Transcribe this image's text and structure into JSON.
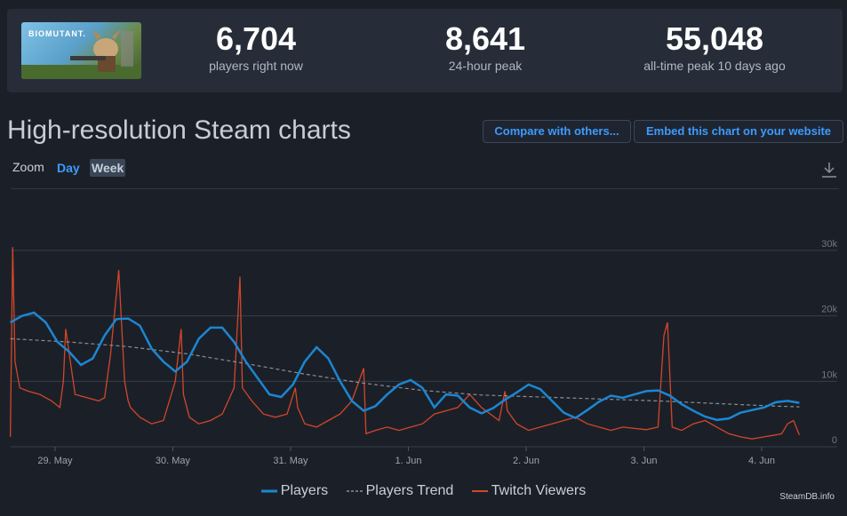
{
  "game": {
    "logo_text": "BIOMUTANT."
  },
  "stats": [
    {
      "value": "6,704",
      "label": "players right now"
    },
    {
      "value": "8,641",
      "label": "24-hour peak"
    },
    {
      "value": "55,048",
      "label": "all-time peak 10 days ago"
    }
  ],
  "page_title": "High-resolution Steam charts",
  "buttons": {
    "compare": "Compare with others...",
    "embed": "Embed this chart on your website"
  },
  "zoom": {
    "label": "Zoom",
    "options": [
      "Day",
      "Week"
    ],
    "selected": "Week"
  },
  "colors": {
    "players": "#1c86d2",
    "trend": "#8a8f96",
    "twitch": "#d2462a",
    "link": "#3c9bff"
  },
  "icons": {
    "download": "download-icon"
  },
  "credit": "SteamDB.info",
  "chart_data": {
    "type": "line",
    "x_ticks": [
      "29. May",
      "30. May",
      "31. May",
      "1. Jun",
      "2. Jun",
      "3. Jun",
      "4. Jun"
    ],
    "y_ticks": [
      "0",
      "10k",
      "20k",
      "30k"
    ],
    "ylim": [
      0,
      30000
    ],
    "grid": true,
    "legend_position": "bottom",
    "series": [
      {
        "name": "Players",
        "x": [
          0,
          0.1,
          0.2,
          0.3,
          0.4,
          0.5,
          0.6,
          0.7,
          0.8,
          0.9,
          1.0,
          1.1,
          1.2,
          1.3,
          1.4,
          1.5,
          1.6,
          1.7,
          1.8,
          1.9,
          2.0,
          2.1,
          2.2,
          2.3,
          2.4,
          2.5,
          2.6,
          2.7,
          2.8,
          2.9,
          3.0,
          3.1,
          3.2,
          3.3,
          3.4,
          3.5,
          3.6,
          3.7,
          3.8,
          3.9,
          4.0,
          4.1,
          4.2,
          4.3,
          4.4,
          4.5,
          4.6,
          4.7,
          4.8,
          4.9,
          5.0,
          5.1,
          5.2,
          5.3,
          5.4,
          5.5,
          5.6,
          5.7,
          5.8,
          5.9,
          6.0,
          6.1,
          6.2,
          6.3,
          6.4,
          6.5,
          6.6,
          6.7
        ],
        "values": [
          19000,
          20000,
          20500,
          19000,
          16000,
          14500,
          12500,
          13500,
          17000,
          19500,
          19600,
          18500,
          15000,
          13000,
          11500,
          13000,
          16500,
          18200,
          18200,
          16000,
          13000,
          10500,
          8000,
          7600,
          9500,
          13000,
          15200,
          13500,
          10000,
          7000,
          5500,
          6200,
          8000,
          9500,
          10200,
          9000,
          6000,
          8000,
          7800,
          6000,
          5100,
          5900,
          7200,
          8300,
          9500,
          8800,
          7000,
          5200,
          4400,
          5600,
          6900,
          7800,
          7500,
          8000,
          8500,
          8600,
          7800,
          6500,
          5500,
          4600,
          4100,
          4300,
          5200,
          5600,
          6000,
          6800,
          7000,
          6700
        ]
      },
      {
        "name": "Players Trend",
        "x": [
          0,
          0.5,
          1.0,
          1.5,
          2.0,
          2.5,
          3.0,
          3.5,
          4.0,
          4.5,
          5.0,
          5.5,
          6.0,
          6.5,
          6.7
        ],
        "values": [
          16500,
          16000,
          15300,
          14200,
          12700,
          11100,
          9700,
          8600,
          7900,
          7600,
          7300,
          7000,
          6600,
          6200,
          6100
        ]
      },
      {
        "name": "Twitch Viewers",
        "x": [
          0,
          0.02,
          0.04,
          0.08,
          0.15,
          0.25,
          0.35,
          0.42,
          0.45,
          0.47,
          0.55,
          0.65,
          0.75,
          0.8,
          0.85,
          0.92,
          0.97,
          1.0,
          1.02,
          1.1,
          1.2,
          1.3,
          1.4,
          1.45,
          1.47,
          1.52,
          1.6,
          1.7,
          1.8,
          1.9,
          1.95,
          1.97,
          2.05,
          2.15,
          2.25,
          2.35,
          2.42,
          2.44,
          2.5,
          2.6,
          2.7,
          2.8,
          2.9,
          3.0,
          3.02,
          3.1,
          3.2,
          3.3,
          3.4,
          3.5,
          3.6,
          3.7,
          3.8,
          3.9,
          4.0,
          4.15,
          4.2,
          4.22,
          4.3,
          4.4,
          4.5,
          4.6,
          4.7,
          4.8,
          4.9,
          5.0,
          5.1,
          5.2,
          5.3,
          5.4,
          5.5,
          5.55,
          5.58,
          5.62,
          5.7,
          5.8,
          5.9,
          6.0,
          6.1,
          6.2,
          6.3,
          6.4,
          6.5,
          6.55,
          6.6,
          6.65,
          6.7
        ],
        "values": [
          1500,
          30500,
          13000,
          9000,
          8500,
          8000,
          7000,
          6000,
          10000,
          18000,
          8000,
          7500,
          7000,
          7500,
          14000,
          27000,
          10000,
          7000,
          6000,
          4500,
          3500,
          4000,
          10000,
          18000,
          8000,
          4500,
          3500,
          4000,
          5000,
          9000,
          26000,
          9000,
          7000,
          5000,
          4500,
          5000,
          9000,
          6000,
          3500,
          3000,
          4000,
          5000,
          7000,
          12000,
          2000,
          2500,
          3000,
          2500,
          3000,
          3500,
          5000,
          5500,
          6000,
          8000,
          6000,
          4000,
          8500,
          5500,
          3500,
          2500,
          3000,
          3500,
          4000,
          4500,
          3500,
          3000,
          2500,
          3000,
          2800,
          2600,
          3000,
          17000,
          19000,
          3000,
          2500,
          3500,
          4000,
          3000,
          2000,
          1500,
          1200,
          1500,
          1800,
          2000,
          3500,
          4000,
          1800
        ]
      }
    ]
  }
}
